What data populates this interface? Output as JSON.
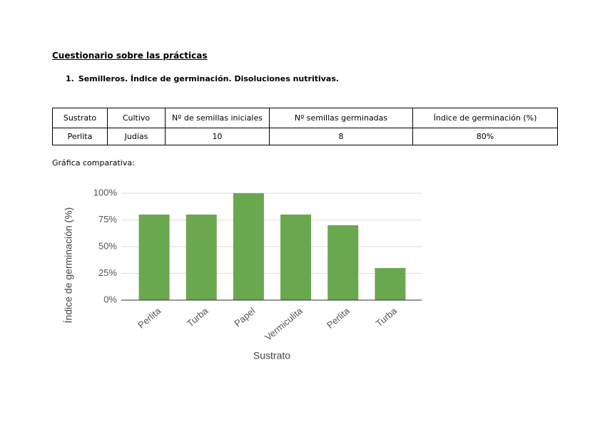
{
  "header": {
    "title": "Cuestionario sobre las prácticas",
    "item_number": "1.",
    "item_text": "Semilleros. Índice de germinación. Disoluciones nutritivas."
  },
  "table": {
    "columns": [
      "Sustrato",
      "Cultivo",
      "Nº de semillas iniciales",
      "Nº semillas germinadas",
      "Índice de germinación (%)"
    ],
    "rows": [
      [
        "Perlita",
        "Judías",
        "10",
        "8",
        "80%"
      ]
    ]
  },
  "chart_caption": "Gráfica comparativa:",
  "chart_data": {
    "type": "bar",
    "x_label": "Sustrato",
    "y_label": "Índice de germinación (%)",
    "categories": [
      "Perlita",
      "Turba",
      "Papel",
      "Vermiculita",
      "Perlita",
      "Turba"
    ],
    "values": [
      80,
      80,
      100,
      80,
      70,
      30
    ],
    "color": "#6aa84f",
    "ylim": [
      0,
      100
    ],
    "yticks": [
      {
        "value": 0,
        "label": "0%"
      },
      {
        "value": 25,
        "label": "25%"
      },
      {
        "value": 50,
        "label": "50%"
      },
      {
        "value": 75,
        "label": "75%"
      },
      {
        "value": 100,
        "label": "100%"
      }
    ],
    "grid": true
  }
}
